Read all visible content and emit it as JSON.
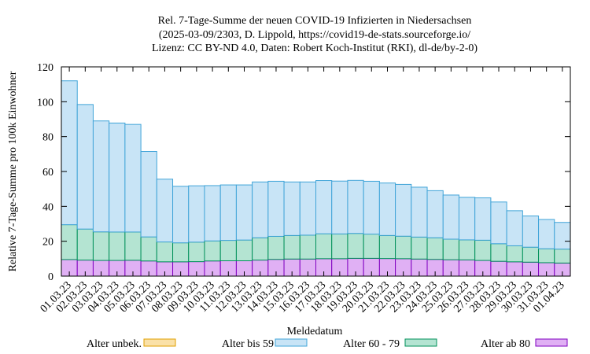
{
  "chart_data": {
    "type": "bar",
    "stacked": true,
    "title_lines": [
      "Rel. 7-Tage-Summe der neuen COVID-19 Infizierten in Niedersachsen",
      "(2025-03-09/2303, D. Lippold, https://covid19-de-stats.sourceforge.io/",
      "Lizenz: CC BY-ND 4.0, Daten: Robert Koch-Institut (RKI), dl-de/by-2-0)"
    ],
    "xlabel": "Meldedatum",
    "ylabel": "Relative 7-Tage-Summe pro 100k Einwohner",
    "ylim": [
      0,
      120
    ],
    "yticks": [
      0,
      20,
      40,
      60,
      80,
      100,
      120
    ],
    "grid": false,
    "legend_position": "bottom",
    "categories": [
      "01.03.23",
      "02.03.23",
      "03.03.23",
      "04.03.23",
      "05.03.23",
      "06.03.23",
      "07.03.23",
      "08.03.23",
      "09.03.23",
      "10.03.23",
      "11.03.23",
      "12.03.23",
      "13.03.23",
      "14.03.23",
      "15.03.23",
      "16.03.23",
      "17.03.23",
      "18.03.23",
      "19.03.23",
      "20.03.23",
      "21.03.23",
      "22.03.23",
      "23.03.23",
      "24.03.23",
      "25.03.23",
      "26.03.23",
      "27.03.23",
      "28.03.23",
      "29.03.23",
      "30.03.23",
      "31.03.23",
      "01.04.23"
    ],
    "series": [
      {
        "name": "Alter ab 80",
        "color": "#e0b0f4",
        "stroke": "#8000c0",
        "values": [
          9.5,
          9.2,
          9.0,
          9.0,
          9.1,
          8.7,
          8.2,
          8.2,
          8.3,
          8.7,
          8.8,
          8.8,
          9.2,
          9.6,
          9.8,
          9.8,
          10.0,
          10.0,
          10.2,
          10.2,
          10.1,
          10.0,
          9.8,
          9.6,
          9.4,
          9.3,
          9.0,
          8.5,
          8.2,
          8.0,
          7.7,
          7.5
        ]
      },
      {
        "name": "Alter 60 - 79",
        "color": "#b4e4d2",
        "stroke": "#00905a",
        "values": [
          20.0,
          17.8,
          16.4,
          16.3,
          16.2,
          13.8,
          11.4,
          10.9,
          11.2,
          11.5,
          11.7,
          11.9,
          12.8,
          13.2,
          13.5,
          13.7,
          14.3,
          14.2,
          14.3,
          13.9,
          13.2,
          12.9,
          12.6,
          12.4,
          11.8,
          11.5,
          11.6,
          10.1,
          9.2,
          8.6,
          8.0,
          8.0
        ]
      },
      {
        "name": "Alter bis 59",
        "color": "#c8e4f6",
        "stroke": "#40a4d8",
        "values": [
          82.5,
          71.4,
          63.6,
          62.5,
          61.7,
          49.0,
          36.0,
          32.4,
          32.3,
          31.7,
          31.8,
          31.6,
          32.0,
          31.6,
          30.7,
          30.5,
          30.5,
          30.3,
          30.4,
          30.3,
          30.1,
          29.7,
          28.6,
          27.0,
          25.3,
          24.4,
          24.3,
          23.9,
          20.1,
          17.9,
          16.8,
          15.3
        ]
      },
      {
        "name": "Alter unbek.",
        "color": "#fae1a8",
        "stroke": "#e0a000",
        "values": [
          0,
          0,
          0,
          0,
          0,
          0,
          0,
          0,
          0,
          0,
          0,
          0,
          0,
          0,
          0,
          0,
          0,
          0,
          0,
          0,
          0,
          0,
          0,
          0,
          0,
          0,
          0,
          0,
          0,
          0,
          0,
          0
        ]
      }
    ],
    "legend": [
      {
        "label": "Alter unbek.",
        "color": "#fae1a8",
        "stroke": "#e0a000"
      },
      {
        "label": "Alter bis 59",
        "color": "#c8e4f6",
        "stroke": "#40a4d8"
      },
      {
        "label": "Alter 60 - 79",
        "color": "#b4e4d2",
        "stroke": "#00905a"
      },
      {
        "label": "Alter ab 80",
        "color": "#e0b0f4",
        "stroke": "#8000c0"
      }
    ]
  }
}
